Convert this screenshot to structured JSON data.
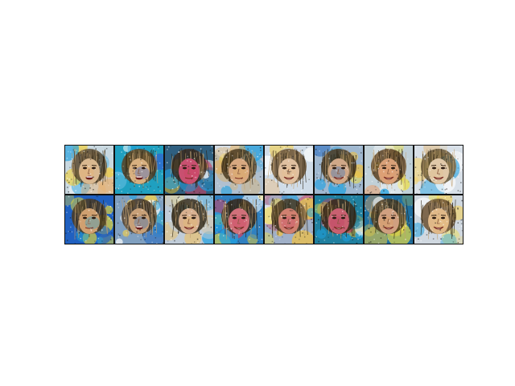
{
  "figure": {
    "rows": 2,
    "cols": 8,
    "tiles": [
      {
        "bg": "#c8d8e0",
        "tint": "#e8b070",
        "accent": "#f0d040",
        "hair": "#5a4a30",
        "skin": "#d9b890",
        "mouth": "open"
      },
      {
        "bg": "#20a0c0",
        "tint": "#3060d0",
        "accent": "#e0c030",
        "hair": "#5a4020",
        "skin": "#d8b080",
        "mouth": "open"
      },
      {
        "bg": "#306080",
        "tint": "#d04060",
        "accent": "#f0c020",
        "hair": "#3a2a20",
        "skin": "#c85070",
        "mouth": "neutral"
      },
      {
        "bg": "#b0c0d0",
        "tint": "#e0b060",
        "accent": "#f0e080",
        "hair": "#4a3a20",
        "skin": "#d8a880",
        "mouth": "neutral"
      },
      {
        "bg": "#d0dce8",
        "tint": "#e8c090",
        "accent": "#f0d060",
        "hair": "#6a5030",
        "skin": "#e0c0a0",
        "mouth": "smile"
      },
      {
        "bg": "#a0b8d0",
        "tint": "#3070c0",
        "accent": "#f0c040",
        "hair": "#4a3820",
        "skin": "#d0a888",
        "mouth": "smile"
      },
      {
        "bg": "#c0d0d8",
        "tint": "#e8a070",
        "accent": "#f0c060",
        "hair": "#5a4020",
        "skin": "#d8a078",
        "mouth": "smile"
      },
      {
        "bg": "#d8e0e8",
        "tint": "#e0c090",
        "accent": "#f0d070",
        "hair": "#6a5838",
        "skin": "#e0c8a8",
        "mouth": "smile"
      },
      {
        "bg": "#2060c0",
        "tint": "#20a0d0",
        "accent": "#f0e030",
        "hair": "#4a3820",
        "skin": "#d0a070",
        "mouth": "neutral"
      },
      {
        "bg": "#80a0c0",
        "tint": "#3070c0",
        "accent": "#f0d050",
        "hair": "#4a3a28",
        "skin": "#c8a078",
        "mouth": "open"
      },
      {
        "bg": "#c0ccd8",
        "tint": "#e8c070",
        "accent": "#f0e060",
        "hair": "#3a3020",
        "skin": "#d8b090",
        "mouth": "smile"
      },
      {
        "bg": "#3080c0",
        "tint": "#d04060",
        "accent": "#f0d030",
        "hair": "#3a2818",
        "skin": "#d0707a",
        "mouth": "smile"
      },
      {
        "bg": "#a0b0c8",
        "tint": "#d05070",
        "accent": "#f0c040",
        "hair": "#4a3820",
        "skin": "#d08070",
        "mouth": "smile"
      },
      {
        "bg": "#2080a0",
        "tint": "#c04060",
        "accent": "#f0c030",
        "hair": "#3a2818",
        "skin": "#c86070",
        "mouth": "smile"
      },
      {
        "bg": "#2070a0",
        "tint": "#e0a060",
        "accent": "#f0d040",
        "hair": "#4a3a20",
        "skin": "#d0a080",
        "mouth": "smile"
      },
      {
        "bg": "#d0d8e0",
        "tint": "#e8c080",
        "accent": "#f0d060",
        "hair": "#6a5030",
        "skin": "#e0b888",
        "mouth": "smile"
      }
    ]
  }
}
